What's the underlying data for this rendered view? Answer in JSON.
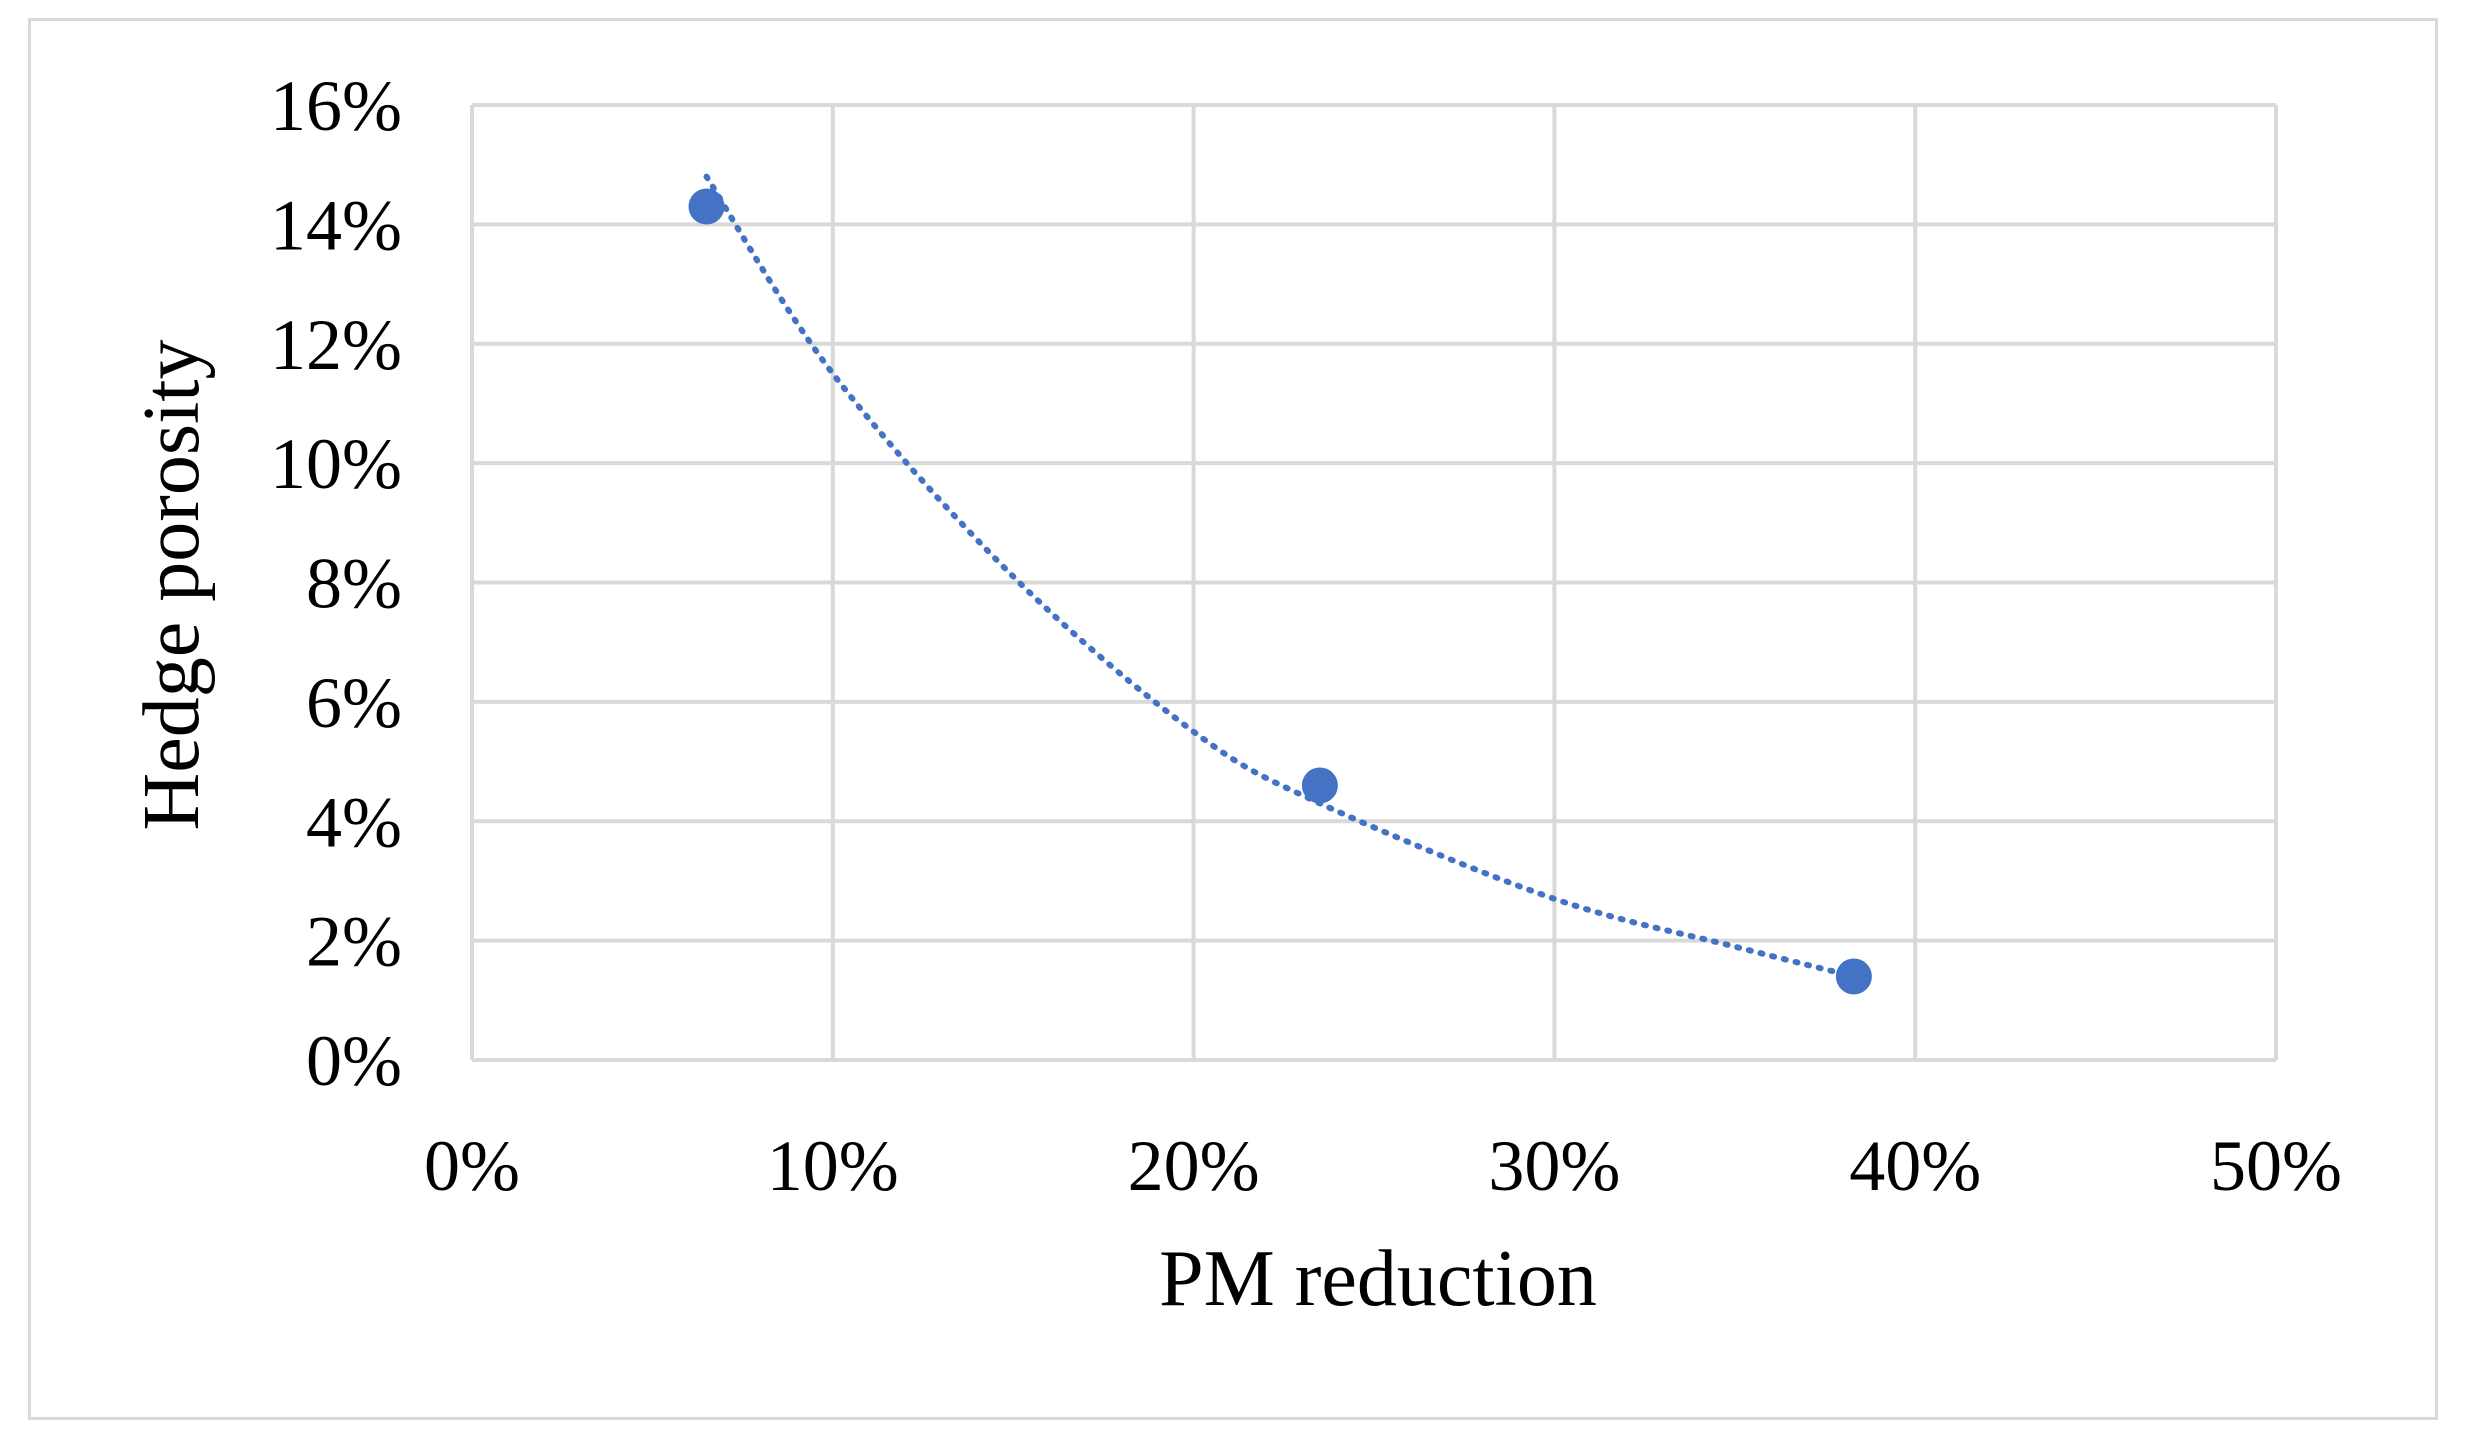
{
  "chart_data": {
    "type": "scatter",
    "title": "",
    "xlabel": "PM reduction",
    "ylabel": "Hedge porosity",
    "xlim": [
      0,
      0.5
    ],
    "ylim": [
      0,
      0.16
    ],
    "x_ticks": [
      "0%",
      "10%",
      "20%",
      "30%",
      "40%",
      "50%"
    ],
    "y_ticks": [
      "0%",
      "2%",
      "4%",
      "6%",
      "8%",
      "10%",
      "12%",
      "14%",
      "16%"
    ],
    "grid": true,
    "legend": "none",
    "series": [
      {
        "points": [
          {
            "x": 0.065,
            "y": 0.143
          },
          {
            "x": 0.235,
            "y": 0.046
          },
          {
            "x": 0.383,
            "y": 0.014
          }
        ],
        "color": "#4472c4",
        "marker": "circle"
      }
    ],
    "trendline": {
      "type": "exponential",
      "style": "dotted",
      "color": "#4472c4",
      "x_range": [
        0.065,
        0.383
      ],
      "points": [
        {
          "x": 0.065,
          "y": 0.148
        },
        {
          "x": 0.1,
          "y": 0.115
        },
        {
          "x": 0.15,
          "y": 0.081
        },
        {
          "x": 0.2,
          "y": 0.055
        },
        {
          "x": 0.235,
          "y": 0.043
        },
        {
          "x": 0.3,
          "y": 0.027
        },
        {
          "x": 0.35,
          "y": 0.019
        },
        {
          "x": 0.383,
          "y": 0.014
        }
      ]
    }
  }
}
